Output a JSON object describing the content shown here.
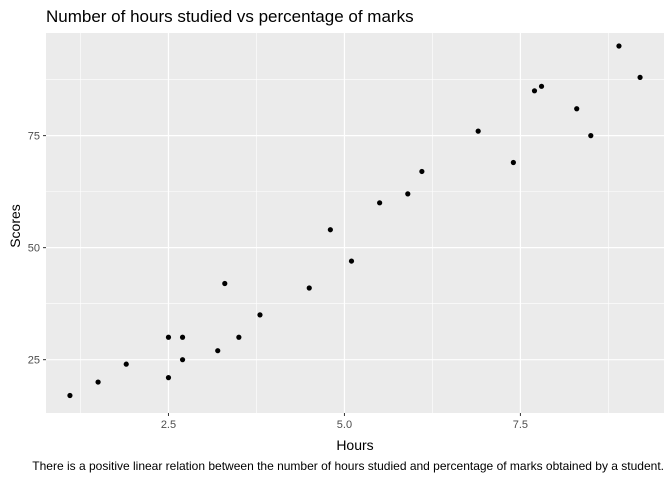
{
  "chart_data": {
    "type": "scatter",
    "title": "Number of hours studied vs percentage of marks",
    "xlabel": "Hours",
    "ylabel": "Scores",
    "caption": "There is a positive linear relation between the number of hours studied and percentage of marks obtained by a student.",
    "xlim": [
      0.76,
      9.54
    ],
    "ylim": [
      13.1,
      97.9
    ],
    "x_ticks": [
      2.5,
      5.0,
      7.5
    ],
    "x_tick_labels": [
      "2.5",
      "5.0",
      "7.5"
    ],
    "y_ticks": [
      25,
      50,
      75
    ],
    "y_tick_labels": [
      "25",
      "50",
      "75"
    ],
    "grid": true,
    "panel_background": "#ebebeb",
    "grid_color": "#ffffff",
    "point_color": "#000000",
    "points": [
      {
        "x": 2.5,
        "y": 21
      },
      {
        "x": 5.1,
        "y": 47
      },
      {
        "x": 3.2,
        "y": 27
      },
      {
        "x": 8.5,
        "y": 75
      },
      {
        "x": 3.5,
        "y": 30
      },
      {
        "x": 1.5,
        "y": 20
      },
      {
        "x": 9.2,
        "y": 88
      },
      {
        "x": 5.5,
        "y": 60
      },
      {
        "x": 8.3,
        "y": 81
      },
      {
        "x": 2.7,
        "y": 25
      },
      {
        "x": 7.7,
        "y": 85
      },
      {
        "x": 5.9,
        "y": 62
      },
      {
        "x": 4.5,
        "y": 41
      },
      {
        "x": 3.3,
        "y": 42
      },
      {
        "x": 1.1,
        "y": 17
      },
      {
        "x": 8.9,
        "y": 95
      },
      {
        "x": 2.5,
        "y": 30
      },
      {
        "x": 1.9,
        "y": 24
      },
      {
        "x": 6.1,
        "y": 67
      },
      {
        "x": 7.4,
        "y": 69
      },
      {
        "x": 2.7,
        "y": 30
      },
      {
        "x": 4.8,
        "y": 54
      },
      {
        "x": 3.8,
        "y": 35
      },
      {
        "x": 6.9,
        "y": 76
      },
      {
        "x": 7.8,
        "y": 86
      }
    ]
  }
}
